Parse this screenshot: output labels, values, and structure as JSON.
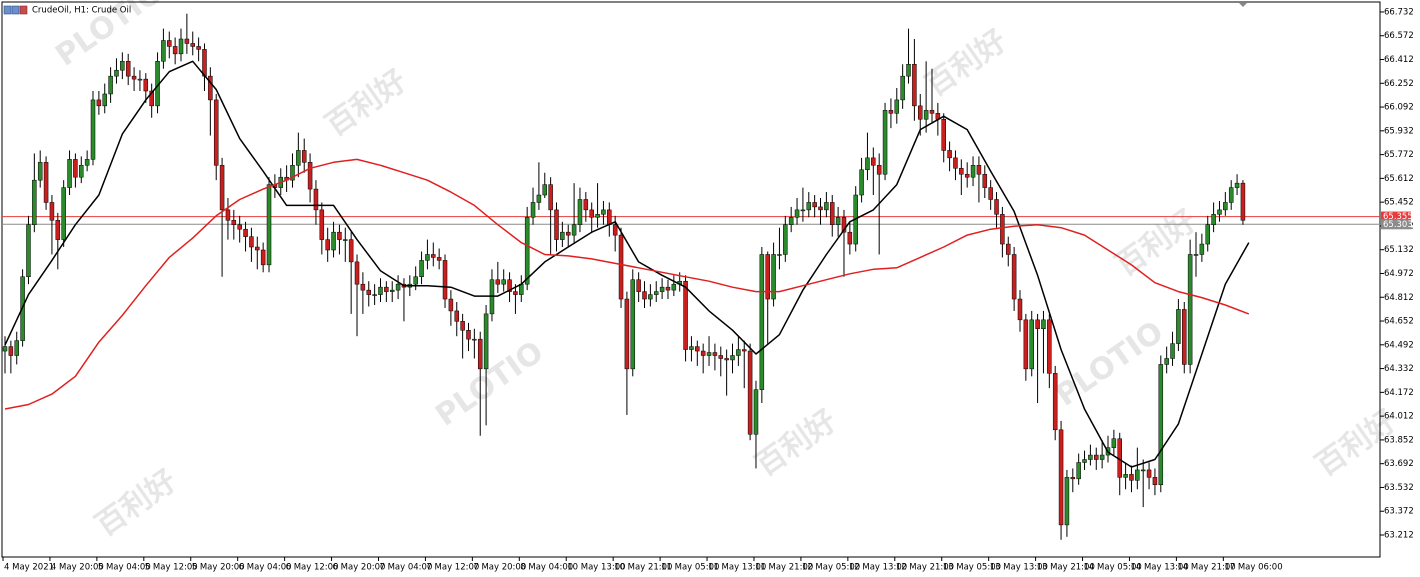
{
  "chart_data": {
    "type": "candlestick",
    "title": "CrudeOil, H1:  Crude Oil",
    "watermark": "百利好",
    "watermark_brand": "PLOTIO",
    "up_color": "#2b8a2b",
    "down_color": "#c91f1f",
    "wick_color": "#000000",
    "ylim": [
      63.064,
      66.799
    ],
    "yticks": [
      66.732,
      66.572,
      66.412,
      66.252,
      66.092,
      65.932,
      65.772,
      65.612,
      65.452,
      65.292,
      65.132,
      64.972,
      64.812,
      64.652,
      64.492,
      64.332,
      64.172,
      64.012,
      63.852,
      63.692,
      63.532,
      63.372,
      63.212
    ],
    "xticks": [
      "4 May 2021",
      "4 May 20:00",
      "5 May 04:00",
      "5 May 12:00",
      "5 May 20:00",
      "6 May 04:00",
      "6 May 12:00",
      "6 May 20:00",
      "7 May 04:00",
      "7 May 12:00",
      "7 May 20:00",
      "8 May 04:00",
      "10 May 13:00",
      "10 May 21:00",
      "11 May 05:00",
      "11 May 13:00",
      "11 May 21:00",
      "12 May 05:00",
      "12 May 13:00",
      "12 May 21:00",
      "13 May 05:00",
      "13 May 13:00",
      "13 May 21:00",
      "14 May 05:00",
      "14 May 13:00",
      "14 May 21:00",
      "17 May 06:00"
    ],
    "hlines": [
      {
        "value": 65.355,
        "color": "#e83c3c"
      },
      {
        "value": 65.303,
        "color": "#8c8c8c"
      }
    ],
    "open": [
      64.45,
      64.48,
      64.42,
      64.52,
      64.95,
      65.3,
      65.6,
      65.72,
      65.45,
      65.33,
      65.2,
      65.55,
      65.74,
      65.62,
      65.7,
      65.74,
      66.14,
      66.1,
      66.18,
      66.3,
      66.34,
      66.4,
      66.3,
      66.28,
      66.28,
      66.2,
      66.1,
      66.4,
      66.54,
      66.5,
      66.45,
      66.55,
      66.52,
      66.5,
      66.48,
      66.3,
      66.14,
      65.7,
      65.4,
      65.33,
      65.3,
      65.27,
      65.22,
      65.15,
      65.13,
      65.03,
      65.57,
      65.55,
      65.62,
      65.6,
      65.7,
      65.8,
      65.72,
      65.54,
      65.4,
      65.2,
      65.13,
      65.25,
      65.2,
      65.2,
      65.05,
      64.9,
      64.86,
      64.83,
      64.83,
      64.88,
      64.85,
      64.86,
      64.9,
      64.88,
      64.9,
      64.95,
      65.06,
      65.1,
      65.08,
      65.06,
      64.8,
      64.72,
      64.65,
      64.59,
      64.53,
      64.53,
      64.33,
      64.7,
      64.93,
      64.9,
      64.93,
      64.85,
      64.83,
      64.9,
      65.35,
      65.45,
      65.5,
      65.57,
      65.4,
      65.2,
      65.25,
      65.23,
      65.3,
      65.47,
      65.4,
      65.35,
      65.37,
      65.4,
      65.3,
      65.23,
      64.8,
      64.33,
      64.93,
      64.85,
      64.8,
      64.83,
      64.85,
      64.88,
      64.86,
      64.9,
      64.92,
      64.46,
      64.48,
      64.45,
      64.42,
      64.44,
      64.42,
      64.4,
      64.39,
      64.42,
      64.46,
      64.45,
      63.89,
      64.19,
      65.1,
      64.8,
      65.1,
      65.1,
      65.3,
      65.35,
      65.4,
      65.4,
      65.45,
      65.42,
      65.4,
      65.45,
      65.3,
      65.35,
      65.25,
      65.17,
      65.5,
      65.67,
      65.75,
      65.7,
      65.64,
      66.07,
      66.05,
      66.14,
      66.3,
      66.38,
      66.1,
      66.01,
      66.07,
      66.05,
      66.01,
      65.8,
      65.75,
      65.68,
      65.64,
      65.62,
      65.7,
      65.64,
      65.55,
      65.47,
      65.37,
      65.17,
      65.1,
      64.8,
      64.66,
      64.33,
      64.66,
      64.6,
      64.66,
      64.3,
      63.92,
      63.28,
      63.6,
      63.59,
      63.7,
      63.72,
      63.75,
      63.72,
      63.75,
      63.8,
      63.86,
      63.6,
      63.62,
      63.58,
      63.65,
      63.65,
      63.6,
      63.55,
      64.36,
      64.4,
      64.5,
      64.73,
      64.36,
      65.1,
      65.1,
      65.17,
      65.3,
      65.37,
      65.4,
      65.45,
      65.55,
      65.58
    ],
    "high": [
      64.55,
      64.52,
      64.58,
      65.0,
      65.36,
      65.78,
      65.8,
      65.76,
      65.5,
      65.38,
      65.6,
      65.8,
      65.78,
      65.76,
      65.8,
      66.2,
      66.2,
      66.25,
      66.36,
      66.42,
      66.46,
      66.45,
      66.36,
      66.34,
      66.32,
      66.25,
      66.46,
      66.62,
      66.6,
      66.56,
      66.62,
      66.72,
      66.6,
      66.56,
      66.52,
      66.36,
      66.18,
      65.75,
      65.48,
      65.4,
      65.36,
      65.32,
      65.28,
      65.22,
      65.18,
      65.62,
      65.64,
      65.68,
      65.7,
      65.78,
      65.92,
      65.88,
      65.78,
      65.6,
      65.45,
      65.28,
      65.32,
      65.3,
      65.28,
      65.25,
      65.1,
      64.98,
      64.92,
      64.9,
      64.94,
      64.92,
      64.92,
      64.96,
      64.94,
      64.96,
      65.02,
      65.12,
      65.2,
      65.18,
      65.14,
      65.1,
      64.86,
      64.78,
      64.7,
      64.64,
      64.6,
      64.58,
      64.76,
      65.0,
      65.05,
      65.0,
      64.98,
      64.9,
      64.96,
      65.42,
      65.55,
      65.72,
      65.65,
      65.62,
      65.45,
      65.32,
      65.3,
      65.58,
      65.55,
      65.52,
      65.45,
      65.58,
      65.46,
      65.45,
      65.36,
      65.28,
      64.85,
      65.0,
      64.98,
      64.92,
      64.9,
      64.92,
      64.94,
      64.93,
      64.96,
      64.98,
      64.96,
      64.55,
      64.52,
      64.5,
      64.55,
      64.5,
      64.48,
      64.46,
      64.5,
      64.55,
      64.52,
      64.5,
      64.25,
      65.15,
      65.12,
      65.18,
      65.28,
      65.36,
      65.42,
      65.48,
      65.55,
      65.52,
      65.5,
      65.48,
      65.52,
      65.5,
      65.42,
      65.4,
      65.32,
      65.56,
      65.75,
      65.92,
      65.82,
      65.78,
      66.12,
      66.15,
      66.22,
      66.38,
      66.62,
      66.55,
      66.18,
      66.4,
      66.35,
      66.12,
      66.05,
      65.86,
      65.8,
      65.74,
      65.72,
      65.76,
      65.76,
      65.7,
      65.6,
      65.52,
      65.42,
      65.22,
      65.15,
      64.86,
      64.7,
      64.72,
      64.7,
      64.72,
      64.7,
      64.35,
      63.98,
      63.65,
      63.66,
      63.76,
      63.78,
      63.82,
      63.8,
      63.85,
      63.88,
      63.92,
      63.9,
      63.7,
      63.68,
      63.8,
      63.72,
      63.7,
      63.66,
      64.42,
      64.48,
      64.58,
      64.8,
      64.78,
      65.2,
      65.25,
      65.24,
      65.36,
      65.45,
      65.46,
      65.52,
      65.6,
      65.64,
      65.6
    ],
    "low": [
      64.3,
      64.3,
      64.36,
      64.48,
      64.9,
      65.25,
      65.55,
      65.4,
      65.1,
      65.0,
      65.15,
      65.5,
      65.55,
      65.58,
      65.66,
      65.7,
      66.04,
      66.05,
      66.12,
      66.25,
      66.28,
      66.24,
      66.2,
      66.2,
      66.12,
      66.02,
      66.05,
      66.35,
      66.42,
      66.38,
      66.4,
      66.45,
      66.44,
      66.4,
      66.2,
      65.9,
      65.6,
      64.95,
      65.2,
      65.2,
      65.18,
      65.12,
      65.05,
      65.0,
      64.98,
      64.98,
      65.48,
      65.5,
      65.52,
      65.55,
      65.62,
      65.65,
      65.45,
      65.3,
      65.1,
      65.05,
      65.08,
      65.1,
      65.05,
      64.7,
      64.55,
      64.7,
      64.75,
      64.76,
      64.78,
      64.78,
      64.78,
      64.8,
      64.65,
      64.82,
      64.86,
      64.9,
      65.0,
      65.02,
      65.0,
      64.74,
      64.62,
      64.55,
      64.4,
      64.45,
      64.4,
      63.88,
      63.95,
      64.65,
      64.84,
      64.85,
      64.78,
      64.7,
      64.78,
      64.86,
      65.3,
      65.4,
      65.48,
      65.1,
      65.12,
      65.15,
      65.15,
      65.18,
      65.25,
      65.32,
      65.25,
      65.28,
      65.3,
      65.22,
      65.12,
      64.74,
      64.02,
      64.28,
      64.78,
      64.74,
      64.75,
      64.78,
      64.8,
      64.8,
      64.82,
      64.85,
      64.38,
      64.38,
      64.35,
      64.3,
      64.35,
      64.32,
      64.28,
      64.15,
      64.3,
      64.35,
      64.2,
      63.85,
      63.66,
      64.1,
      64.5,
      64.75,
      65.0,
      65.05,
      65.25,
      65.3,
      65.32,
      65.35,
      65.35,
      65.3,
      65.35,
      65.22,
      65.22,
      64.95,
      65.1,
      65.12,
      65.45,
      65.6,
      65.5,
      65.1,
      65.6,
      65.95,
      65.98,
      66.08,
      66.25,
      66.0,
      65.9,
      65.92,
      65.98,
      65.9,
      65.72,
      65.66,
      65.6,
      65.5,
      65.55,
      65.56,
      65.45,
      65.48,
      65.4,
      65.28,
      65.08,
      65.02,
      64.72,
      64.58,
      64.25,
      64.28,
      64.1,
      64.3,
      64.2,
      63.85,
      63.18,
      63.2,
      63.5,
      63.55,
      63.65,
      63.68,
      63.65,
      63.66,
      63.7,
      63.75,
      63.48,
      63.52,
      63.5,
      63.52,
      63.4,
      63.52,
      63.48,
      63.5,
      64.3,
      64.35,
      64.45,
      64.3,
      64.3,
      64.95,
      65.05,
      65.12,
      65.25,
      65.32,
      65.36,
      65.4,
      65.5,
      65.3
    ],
    "close": [
      64.48,
      64.42,
      64.52,
      64.95,
      65.3,
      65.6,
      65.72,
      65.45,
      65.33,
      65.2,
      65.55,
      65.74,
      65.62,
      65.7,
      65.74,
      66.14,
      66.1,
      66.18,
      66.3,
      66.34,
      66.4,
      66.3,
      66.28,
      66.28,
      66.2,
      66.1,
      66.4,
      66.54,
      66.5,
      66.45,
      66.55,
      66.52,
      66.5,
      66.48,
      66.3,
      66.14,
      65.7,
      65.4,
      65.33,
      65.3,
      65.27,
      65.22,
      65.15,
      65.13,
      65.03,
      65.57,
      65.55,
      65.62,
      65.6,
      65.7,
      65.8,
      65.72,
      65.54,
      65.4,
      65.2,
      65.13,
      65.25,
      65.2,
      65.2,
      65.05,
      64.9,
      64.86,
      64.83,
      64.83,
      64.88,
      64.85,
      64.86,
      64.9,
      64.88,
      64.9,
      64.95,
      65.06,
      65.1,
      65.08,
      65.06,
      64.8,
      64.72,
      64.65,
      64.59,
      64.53,
      64.53,
      64.33,
      64.7,
      64.93,
      64.9,
      64.93,
      64.85,
      64.83,
      64.9,
      65.35,
      65.45,
      65.5,
      65.57,
      65.4,
      65.2,
      65.25,
      65.23,
      65.3,
      65.47,
      65.4,
      65.35,
      65.37,
      65.4,
      65.3,
      65.23,
      64.8,
      64.33,
      64.93,
      64.85,
      64.8,
      64.83,
      64.85,
      64.88,
      64.86,
      64.9,
      64.92,
      64.46,
      64.48,
      64.45,
      64.42,
      64.44,
      64.42,
      64.4,
      64.39,
      64.42,
      64.46,
      64.45,
      63.89,
      64.19,
      65.1,
      64.8,
      65.1,
      65.1,
      65.3,
      65.35,
      65.4,
      65.4,
      65.45,
      65.42,
      65.4,
      65.45,
      65.3,
      65.35,
      65.25,
      65.17,
      65.5,
      65.67,
      65.75,
      65.7,
      65.64,
      66.07,
      66.05,
      66.14,
      66.3,
      66.38,
      66.1,
      66.01,
      66.07,
      66.05,
      66.01,
      65.8,
      65.75,
      65.68,
      65.64,
      65.62,
      65.7,
      65.64,
      65.55,
      65.47,
      65.37,
      65.17,
      65.1,
      64.8,
      64.66,
      64.33,
      64.66,
      64.6,
      64.66,
      64.3,
      63.92,
      63.28,
      63.6,
      63.59,
      63.7,
      63.72,
      63.75,
      63.72,
      63.75,
      63.8,
      63.86,
      63.6,
      63.62,
      63.58,
      63.65,
      63.65,
      63.6,
      63.55,
      64.36,
      64.4,
      64.5,
      64.73,
      64.36,
      65.1,
      65.1,
      65.17,
      65.3,
      65.37,
      65.4,
      65.45,
      65.55,
      65.58,
      65.33
    ],
    "series": [
      {
        "color": "#000000",
        "values": [
          64.49,
          64.83,
          65.06,
          65.3,
          65.5,
          65.91,
          66.14,
          66.33,
          66.4,
          66.21,
          65.88,
          65.66,
          65.43,
          65.43,
          65.43,
          65.2,
          64.99,
          64.89,
          64.89,
          64.88,
          64.82,
          64.82,
          64.9,
          65.05,
          65.15,
          65.25,
          65.32,
          65.05,
          64.96,
          64.88,
          64.72,
          64.59,
          64.43,
          64.56,
          64.86,
          65.1,
          65.32,
          65.4,
          65.57,
          65.94,
          66.03,
          65.94,
          65.66,
          65.39,
          64.96,
          64.46,
          64.06,
          63.77,
          63.67,
          63.72,
          63.96,
          64.43,
          64.9,
          65.18
        ]
      },
      {
        "color": "#e02020",
        "values": [
          64.06,
          64.09,
          64.16,
          64.28,
          64.51,
          64.69,
          64.89,
          65.08,
          65.21,
          65.36,
          65.47,
          65.54,
          65.6,
          65.68,
          65.72,
          65.74,
          65.7,
          65.65,
          65.6,
          65.52,
          65.43,
          65.3,
          65.18,
          65.1,
          65.09,
          65.07,
          65.04,
          65.01,
          64.98,
          64.95,
          64.92,
          64.88,
          64.85,
          64.85,
          64.89,
          64.93,
          64.97,
          65.0,
          65.01,
          65.08,
          65.15,
          65.23,
          65.27,
          65.29,
          65.3,
          65.28,
          65.23,
          65.13,
          65.03,
          64.91,
          64.85,
          64.81,
          64.76,
          64.7
        ]
      }
    ]
  }
}
